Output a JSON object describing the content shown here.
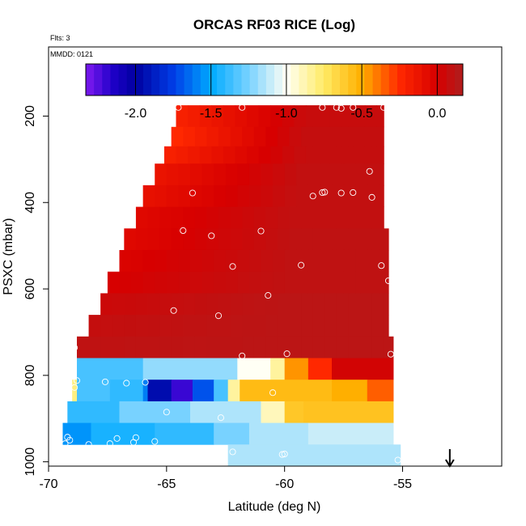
{
  "chart_data": {
    "type": "heatmap",
    "title": "ORCAS RF03 RICE (Log)",
    "flights_label": "Flts: 3",
    "date_label": "MMDD: 0121",
    "xlabel": "Latitude (deg N)",
    "ylabel": "PSXC (mbar)",
    "xlim": [
      -70,
      -50.8
    ],
    "ylim": [
      1010,
      40
    ],
    "x_ticks": [
      -70,
      -65,
      -60,
      -55
    ],
    "x_tick_labels": [
      "-70",
      "-65",
      "-60",
      "-55"
    ],
    "y_ticks": [
      200,
      400,
      600,
      800,
      1000
    ],
    "y_tick_labels": [
      "200",
      "400",
      "600",
      "800",
      "1000"
    ],
    "colorbar": {
      "range": [
        -2.33,
        0.17
      ],
      "ticks": [
        -2.0,
        -1.5,
        -1.0,
        -0.5,
        0.0
      ],
      "tick_labels": [
        "-2.0",
        "-1.5",
        "-1.0",
        "-0.5",
        "0.0"
      ]
    },
    "arrow_latitude": -53.0,
    "rows": [
      {
        "pmin": 175,
        "pmax": 225,
        "lat_start": -64.6,
        "lat_end": -55.8,
        "v0": -0.2,
        "v1": 0.07
      },
      {
        "pmin": 225,
        "pmax": 270,
        "lat_start": -64.8,
        "lat_end": -55.8,
        "v0": -0.25,
        "v1": 0.08
      },
      {
        "pmin": 270,
        "pmax": 310,
        "lat_start": -65.1,
        "lat_end": -55.8,
        "v0": -0.2,
        "v1": 0.08
      },
      {
        "pmin": 310,
        "pmax": 360,
        "lat_start": -65.5,
        "lat_end": -55.8,
        "v0": -0.12,
        "v1": 0.09
      },
      {
        "pmin": 360,
        "pmax": 410,
        "lat_start": -66.0,
        "lat_end": -55.8,
        "v0": -0.1,
        "v1": 0.09
      },
      {
        "pmin": 410,
        "pmax": 460,
        "lat_start": -66.3,
        "lat_end": -55.8,
        "v0": -0.05,
        "v1": 0.09
      },
      {
        "pmin": 460,
        "pmax": 510,
        "lat_start": -66.8,
        "lat_end": -55.6,
        "v0": -0.05,
        "v1": 0.1
      },
      {
        "pmin": 510,
        "pmax": 560,
        "lat_start": -67.0,
        "lat_end": -55.6,
        "v0": -0.02,
        "v1": 0.1
      },
      {
        "pmin": 560,
        "pmax": 610,
        "lat_start": -67.5,
        "lat_end": -55.6,
        "v0": 0.0,
        "v1": 0.1
      },
      {
        "pmin": 610,
        "pmax": 660,
        "lat_start": -67.8,
        "lat_end": -55.6,
        "v0": 0.05,
        "v1": 0.12
      },
      {
        "pmin": 660,
        "pmax": 710,
        "lat_start": -68.3,
        "lat_end": -55.6,
        "v0": 0.08,
        "v1": 0.12
      },
      {
        "pmin": 710,
        "pmax": 760,
        "lat_start": -68.8,
        "lat_end": -55.4,
        "v0": 0.1,
        "v1": 0.12
      },
      {
        "pmin": 760,
        "pmax": 810,
        "lat_start": -68.8,
        "lat_end": -55.4,
        "segments": [
          {
            "lat": -68.8,
            "v": -1.35
          },
          {
            "lat": -66.0,
            "v": -1.2
          },
          {
            "lat": -62.0,
            "v": -1.0
          },
          {
            "lat": -60.6,
            "v": -0.85
          },
          {
            "lat": -60.0,
            "v": -0.45
          },
          {
            "lat": -59.0,
            "v": -0.25
          },
          {
            "lat": -58.0,
            "v": 0.02
          }
        ]
      },
      {
        "pmin": 810,
        "pmax": 860,
        "lat_start": -69.0,
        "lat_end": -55.4,
        "segments": [
          {
            "lat": -69.0,
            "v": -0.8
          },
          {
            "lat": -68.8,
            "v": -1.35
          },
          {
            "lat": -67.4,
            "v": -1.4
          },
          {
            "lat": -66.0,
            "v": -1.6
          },
          {
            "lat": -65.8,
            "v": -1.95
          },
          {
            "lat": -64.8,
            "v": -2.2
          },
          {
            "lat": -63.9,
            "v": -1.7
          },
          {
            "lat": -63.0,
            "v": -1.35
          },
          {
            "lat": -62.4,
            "v": -0.85
          },
          {
            "lat": -61.9,
            "v": -0.55
          },
          {
            "lat": -58.0,
            "v": -0.5
          },
          {
            "lat": -56.5,
            "v": -0.35
          }
        ]
      },
      {
        "pmin": 860,
        "pmax": 910,
        "lat_start": -69.2,
        "lat_end": -55.4,
        "segments": [
          {
            "lat": -69.2,
            "v": -1.4
          },
          {
            "lat": -67.0,
            "v": -1.25
          },
          {
            "lat": -64.0,
            "v": -1.15
          },
          {
            "lat": -61.0,
            "v": -0.9
          },
          {
            "lat": -60.0,
            "v": -0.6
          },
          {
            "lat": -59.2,
            "v": -0.58
          }
        ]
      },
      {
        "pmin": 910,
        "pmax": 960,
        "lat_start": -69.4,
        "lat_end": -55.4,
        "segments": [
          {
            "lat": -69.4,
            "v": -1.55
          },
          {
            "lat": -68.2,
            "v": -1.45
          },
          {
            "lat": -65.5,
            "v": -1.4
          },
          {
            "lat": -63.0,
            "v": -1.25
          },
          {
            "lat": -61.5,
            "v": -1.15
          },
          {
            "lat": -59.0,
            "v": -1.1
          }
        ]
      },
      {
        "pmin": 960,
        "pmax": 1010,
        "lat_start": -62.4,
        "lat_end": -55.1,
        "segments": [
          {
            "lat": -62.4,
            "v": -1.15
          }
        ]
      }
    ],
    "points": [
      {
        "lat": -64.5,
        "p": 180
      },
      {
        "lat": -61.8,
        "p": 180
      },
      {
        "lat": -58.4,
        "p": 180
      },
      {
        "lat": -57.8,
        "p": 180
      },
      {
        "lat": -57.6,
        "p": 182
      },
      {
        "lat": -57.1,
        "p": 180
      },
      {
        "lat": -55.8,
        "p": 180
      },
      {
        "lat": -56.4,
        "p": 328
      },
      {
        "lat": -58.4,
        "p": 377
      },
      {
        "lat": -58.3,
        "p": 376
      },
      {
        "lat": -57.6,
        "p": 378
      },
      {
        "lat": -57.1,
        "p": 377
      },
      {
        "lat": -58.8,
        "p": 385
      },
      {
        "lat": -56.3,
        "p": 388
      },
      {
        "lat": -63.9,
        "p": 378
      },
      {
        "lat": -64.3,
        "p": 465
      },
      {
        "lat": -61.0,
        "p": 466
      },
      {
        "lat": -63.1,
        "p": 477
      },
      {
        "lat": -62.2,
        "p": 548
      },
      {
        "lat": -59.3,
        "p": 545
      },
      {
        "lat": -55.9,
        "p": 546
      },
      {
        "lat": -55.6,
        "p": 581
      },
      {
        "lat": -60.7,
        "p": 615
      },
      {
        "lat": -64.7,
        "p": 650
      },
      {
        "lat": -62.8,
        "p": 662
      },
      {
        "lat": -61.8,
        "p": 755
      },
      {
        "lat": -59.9,
        "p": 750
      },
      {
        "lat": -55.5,
        "p": 751
      },
      {
        "lat": -68.9,
        "p": 736
      },
      {
        "lat": -68.8,
        "p": 812
      },
      {
        "lat": -68.9,
        "p": 828
      },
      {
        "lat": -67.6,
        "p": 815
      },
      {
        "lat": -66.7,
        "p": 818
      },
      {
        "lat": -65.9,
        "p": 816
      },
      {
        "lat": -60.5,
        "p": 840
      },
      {
        "lat": -65.0,
        "p": 885
      },
      {
        "lat": -62.7,
        "p": 898
      },
      {
        "lat": -69.2,
        "p": 943
      },
      {
        "lat": -69.3,
        "p": 958
      },
      {
        "lat": -69.1,
        "p": 950
      },
      {
        "lat": -68.3,
        "p": 960
      },
      {
        "lat": -67.1,
        "p": 946
      },
      {
        "lat": -67.4,
        "p": 958
      },
      {
        "lat": -66.3,
        "p": 944
      },
      {
        "lat": -66.4,
        "p": 955
      },
      {
        "lat": -65.5,
        "p": 953
      },
      {
        "lat": -62.2,
        "p": 977
      },
      {
        "lat": -60.1,
        "p": 983
      },
      {
        "lat": -60.0,
        "p": 982
      },
      {
        "lat": -55.2,
        "p": 996
      }
    ]
  }
}
